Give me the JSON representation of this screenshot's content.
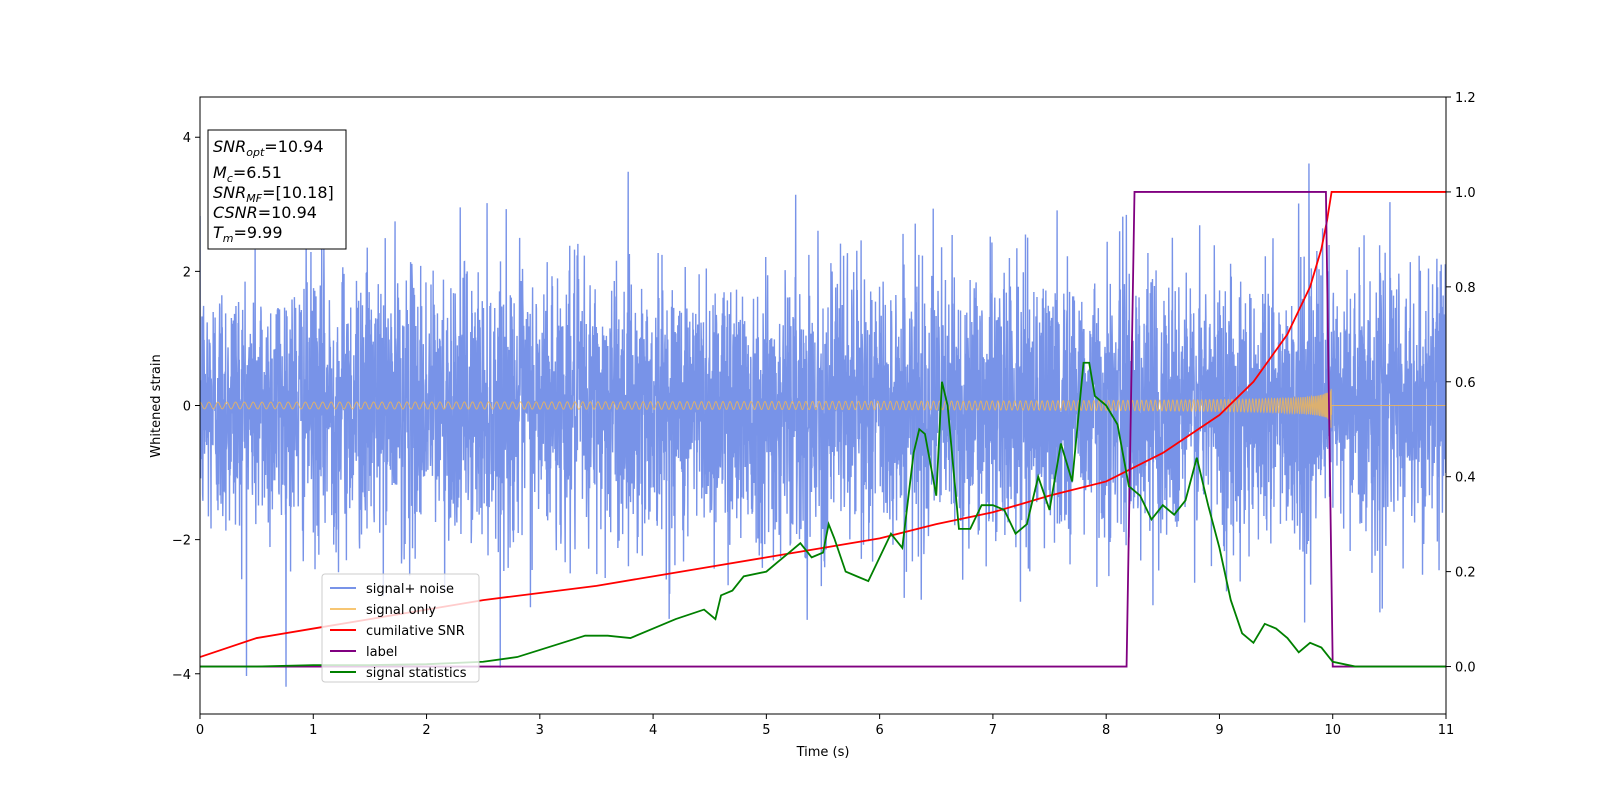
{
  "chart_data": {
    "type": "line",
    "title": "",
    "xlabel": "Time (s)",
    "ylabel": "Whitened strain",
    "y2label": "",
    "xlim": [
      0,
      11
    ],
    "ylim": [
      -4.6,
      4.6
    ],
    "y2lim": [
      -0.1,
      1.2
    ],
    "xticks": [
      "0",
      "1",
      "2",
      "3",
      "4",
      "5",
      "6",
      "7",
      "8",
      "9",
      "10",
      "11"
    ],
    "yticks": [
      -4,
      -2,
      0,
      2,
      4
    ],
    "yticks_labels": [
      "−4",
      "−2",
      "0",
      "2",
      "4"
    ],
    "y2ticks": [
      "0.0",
      "0.2",
      "0.4",
      "0.6",
      "0.8",
      "1.0",
      "1.2"
    ],
    "grid": false,
    "legend_placement": "lower-left",
    "annotation": {
      "snr_opt": {
        "sym": "SNR",
        "sub": "opt",
        "value": "=10.94"
      },
      "mc": {
        "sym": "M",
        "sub": "c",
        "value": "=6.51"
      },
      "snr_mf": {
        "sym": "SNR",
        "sub": "MF",
        "value": "=[10.18]"
      },
      "csnr": {
        "sym": "CSNR",
        "value": "=10.94"
      },
      "tm": {
        "sym": "T",
        "sub": "m",
        "value": "=9.99"
      }
    },
    "series": [
      {
        "name": "signal+ noise",
        "color": "#7893e8",
        "axis": "left",
        "kind": "gaussian-noise-plus-signal",
        "noise_std": 1.0,
        "t_range": [
          0,
          11
        ]
      },
      {
        "name": "signal only",
        "color": "#f5b850",
        "axis": "left",
        "kind": "chirp",
        "amplitude_start": 0.05,
        "amplitude_merge": 0.75,
        "t_merge": 9.99
      },
      {
        "name": "cumilative SNR",
        "color": "#ff0000",
        "axis": "right",
        "x": [
          0,
          0.5,
          1,
          1.5,
          2,
          2.5,
          3,
          3.5,
          4,
          4.5,
          5,
          5.5,
          6,
          6.5,
          7,
          7.5,
          8,
          8.5,
          9,
          9.3,
          9.6,
          9.8,
          9.9,
          9.95,
          9.99,
          10.0,
          11
        ],
        "values": [
          0.02,
          0.06,
          0.08,
          0.1,
          0.12,
          0.14,
          0.155,
          0.17,
          0.19,
          0.21,
          0.23,
          0.25,
          0.27,
          0.3,
          0.325,
          0.36,
          0.39,
          0.45,
          0.53,
          0.6,
          0.7,
          0.8,
          0.88,
          0.94,
          1.0,
          1.0,
          1.0
        ]
      },
      {
        "name": "label",
        "color": "#800080",
        "axis": "right",
        "x": [
          0,
          8.18,
          8.25,
          9.94,
          10.0,
          11
        ],
        "values": [
          0,
          0,
          1,
          1,
          0,
          0
        ]
      },
      {
        "name": "signal statistics",
        "color": "#008000",
        "axis": "right",
        "x": [
          0,
          0.5,
          1,
          1.5,
          2,
          2.5,
          2.8,
          3.0,
          3.2,
          3.4,
          3.6,
          3.8,
          4.0,
          4.2,
          4.45,
          4.55,
          4.6,
          4.7,
          4.8,
          5.0,
          5.1,
          5.2,
          5.3,
          5.4,
          5.5,
          5.55,
          5.6,
          5.7,
          5.8,
          5.9,
          6.0,
          6.1,
          6.2,
          6.3,
          6.35,
          6.4,
          6.5,
          6.55,
          6.6,
          6.7,
          6.8,
          6.9,
          7.0,
          7.1,
          7.2,
          7.3,
          7.4,
          7.5,
          7.6,
          7.7,
          7.8,
          7.85,
          7.9,
          8.0,
          8.1,
          8.2,
          8.3,
          8.4,
          8.5,
          8.6,
          8.7,
          8.8,
          8.9,
          9.0,
          9.1,
          9.2,
          9.3,
          9.4,
          9.5,
          9.6,
          9.7,
          9.8,
          9.9,
          10.0,
          10.2,
          10.5,
          11
        ],
        "values": [
          0.0,
          0.0,
          0.003,
          0.003,
          0.005,
          0.01,
          0.02,
          0.035,
          0.05,
          0.065,
          0.065,
          0.06,
          0.08,
          0.1,
          0.12,
          0.1,
          0.15,
          0.16,
          0.19,
          0.2,
          0.22,
          0.24,
          0.26,
          0.23,
          0.24,
          0.3,
          0.27,
          0.2,
          0.19,
          0.18,
          0.23,
          0.28,
          0.25,
          0.45,
          0.5,
          0.49,
          0.36,
          0.6,
          0.55,
          0.29,
          0.29,
          0.34,
          0.34,
          0.33,
          0.28,
          0.3,
          0.4,
          0.33,
          0.47,
          0.39,
          0.64,
          0.64,
          0.57,
          0.55,
          0.51,
          0.38,
          0.36,
          0.31,
          0.34,
          0.32,
          0.35,
          0.44,
          0.34,
          0.25,
          0.14,
          0.07,
          0.05,
          0.09,
          0.08,
          0.06,
          0.03,
          0.05,
          0.04,
          0.01,
          0.0,
          0.0,
          0.0
        ]
      }
    ]
  }
}
